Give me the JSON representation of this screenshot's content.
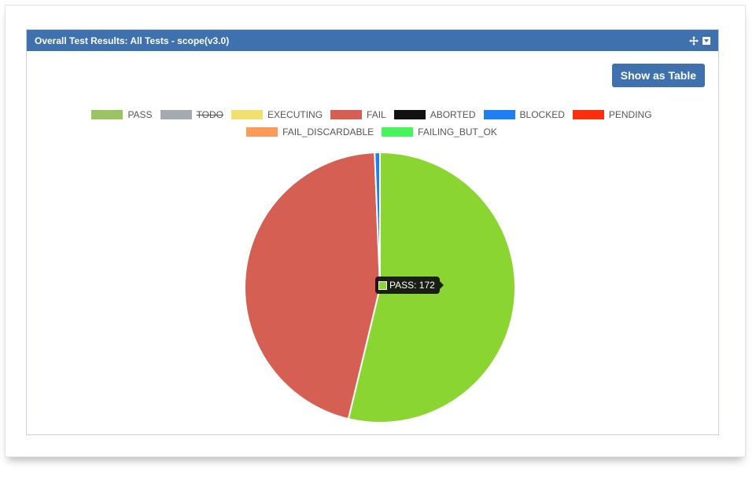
{
  "panel": {
    "title": "Overall Test Results: All Tests - scope(v3.0)",
    "show_table_label": "Show as Table"
  },
  "icons": {
    "move": "move-arrows-icon",
    "dropdown": "dropdown-menu-icon"
  },
  "colors": {
    "header": "#3e71ad",
    "button": "#3e71ad"
  },
  "chart_data": {
    "type": "pie",
    "title": "",
    "legend_position": "top-center",
    "legend": [
      {
        "name": "PASS",
        "color": "#9bc364",
        "hidden": false
      },
      {
        "name": "TODO",
        "color": "#a5a9b0",
        "hidden": true
      },
      {
        "name": "EXECUTING",
        "color": "#f0e070",
        "hidden": false
      },
      {
        "name": "FAIL",
        "color": "#d45f52",
        "hidden": false
      },
      {
        "name": "ABORTED",
        "color": "#111111",
        "hidden": false
      },
      {
        "name": "BLOCKED",
        "color": "#1e7ff5",
        "hidden": false
      },
      {
        "name": "PENDING",
        "color": "#fb2e0e",
        "hidden": false
      },
      {
        "name": "FAIL_DISCARDABLE",
        "color": "#ff9a5b",
        "hidden": false
      },
      {
        "name": "FAILING_BUT_OK",
        "color": "#48f55c",
        "hidden": false
      }
    ],
    "slices": [
      {
        "name": "PASS",
        "value": 172,
        "color": "#8ad532"
      },
      {
        "name": "FAIL",
        "value": 146,
        "color": "#d45f52"
      },
      {
        "name": "BLOCKED",
        "value": 2,
        "color": "#1e7ff5"
      }
    ],
    "tooltip": {
      "series": "PASS",
      "text": "PASS: 172",
      "color": "#8ad532"
    }
  }
}
